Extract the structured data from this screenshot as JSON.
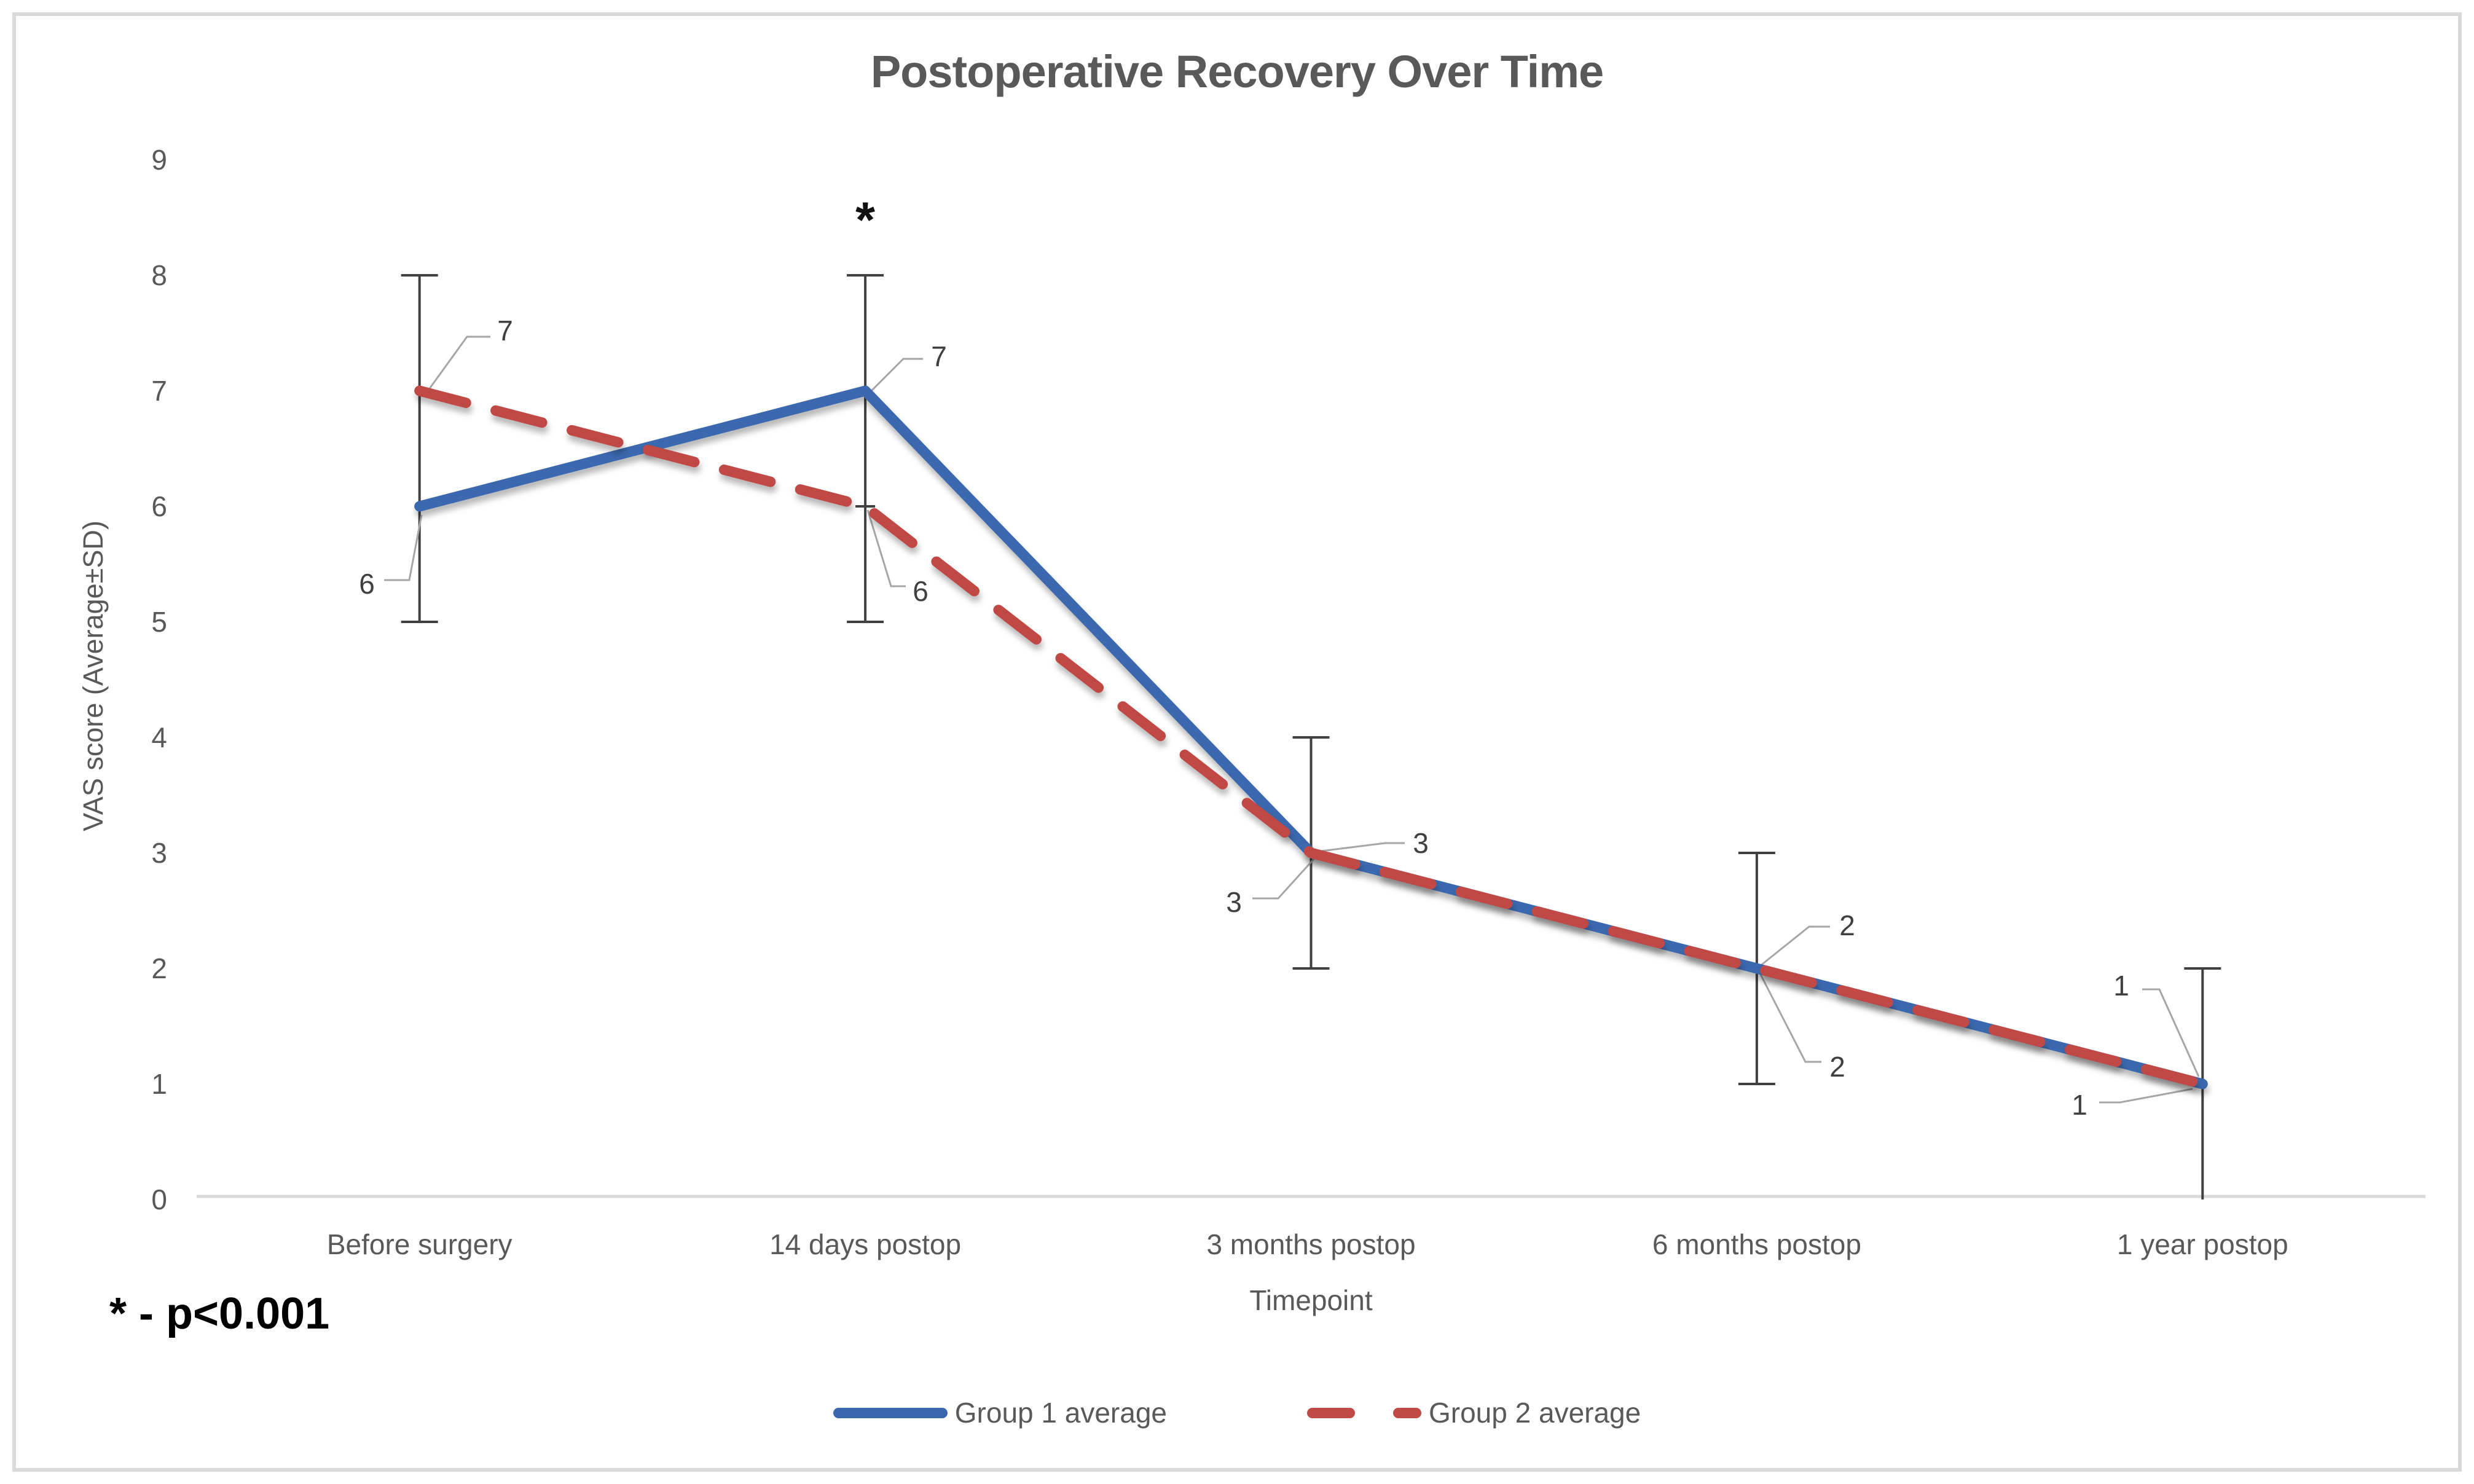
{
  "window": {
    "background": "#FFFFFF",
    "border_color": "#D9D9D9"
  },
  "chart_data": {
    "type": "line",
    "title": "Postoperative Recovery Over Time",
    "x_axis_title": "Timepoint",
    "y_axis_title": "VAS score (Average±SD)",
    "categories": [
      "Before surgery",
      "14 days postop",
      "3 months postop",
      "6 months postop",
      "1 year postop"
    ],
    "y_ticks": [
      0,
      1,
      2,
      3,
      4,
      5,
      6,
      7,
      8,
      9
    ],
    "ylim": [
      0,
      9
    ],
    "grid": false,
    "legend_position": "bottom",
    "series": [
      {
        "name": "Group 1 average",
        "color": "#3A68AE",
        "line_style": "solid",
        "values": [
          6,
          7,
          3,
          2,
          1
        ],
        "sd": [
          1,
          1,
          1,
          1,
          1
        ],
        "data_labels": [
          "6",
          "7",
          "3",
          "2",
          "1"
        ]
      },
      {
        "name": "Group 2 average",
        "color": "#C04A45",
        "line_style": "dashed",
        "values": [
          7,
          6,
          3,
          2,
          1
        ],
        "sd": [
          1,
          1,
          1,
          1,
          1
        ],
        "data_labels": [
          "7",
          "6",
          "3",
          "2",
          "1"
        ]
      }
    ],
    "error_bars": [
      {
        "category_index": 0,
        "low": 5,
        "high": 8
      },
      {
        "category_index": 1,
        "low": 5,
        "high": 8
      },
      {
        "category_index": 2,
        "low": 2,
        "high": 4
      },
      {
        "category_index": 3,
        "low": 1,
        "high": 3
      },
      {
        "category_index": 4,
        "low": 0,
        "high": 2
      }
    ],
    "annotations": {
      "significance_marker": "*",
      "significance_category_index": 1,
      "note": "* - p<0.001"
    },
    "colors": {
      "axis_line": "#D9D9D9",
      "error_bar": "#404040",
      "text": "#595959",
      "data_label": "#404040",
      "leader_line": "#A6A6A6"
    }
  }
}
